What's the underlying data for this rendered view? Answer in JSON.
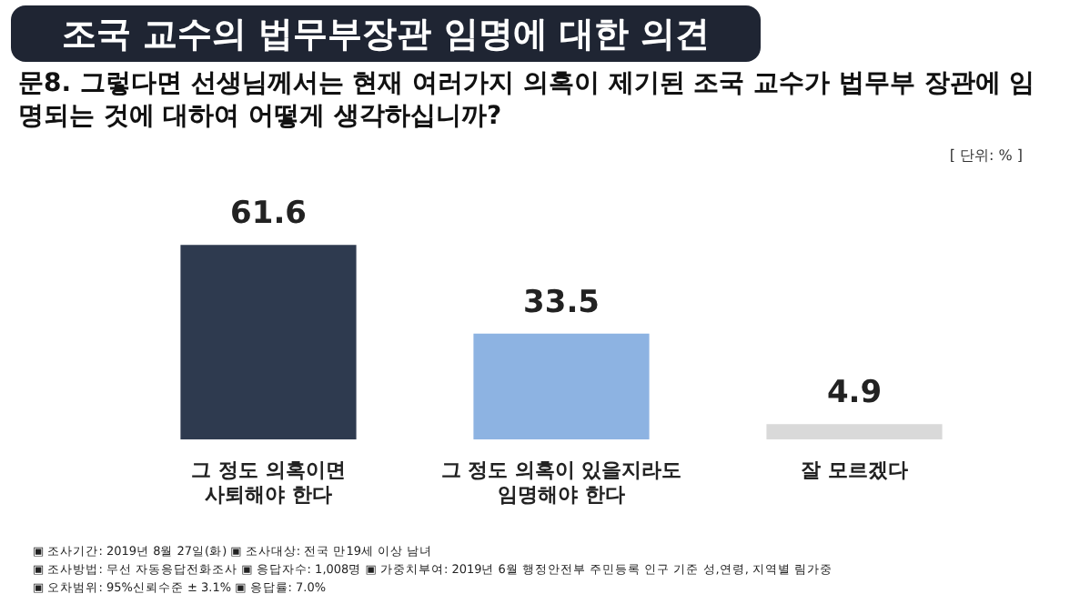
{
  "chart_data": {
    "type": "bar",
    "title": "조국 교수의 법무부장관 임명에 대한 의견",
    "subtitle": "문8. 그렇다면 선생님께서는 현재 여러가지 의혹이 제기된 조국 교수가 법무부 장관에 임명되는 것에 대하여 어떻게 생각하십니까?",
    "categories": [
      "그 정도 의혹이면 사퇴해야 한다",
      "그 정도 의혹이 있을지라도 임명해야 한다",
      "잘 모르겠다"
    ],
    "values": [
      61.6,
      33.5,
      4.9
    ],
    "colors": [
      "#2e3a4f",
      "#8db3e2",
      "#d9d9d9"
    ],
    "data_labels": true,
    "annotations": [
      "[ 단위: % ]",
      "▣ 조사기간: 2019년 8월 27일(화)  ▣ 조사대상: 전국 만19세 이상 남녀",
      "▣ 조사방법: 무선 자동응답전화조사  ▣ 응답자수: 1,008명  ▣ 가중치부여: 2019년 6월 행정안전부 주민등록 인구 기준 성,연령, 지역별 림가중",
      "▣ 오차범위: 95%신뢰수준 ± 3.1%  ▣ 응답률: 7.0%"
    ]
  }
}
